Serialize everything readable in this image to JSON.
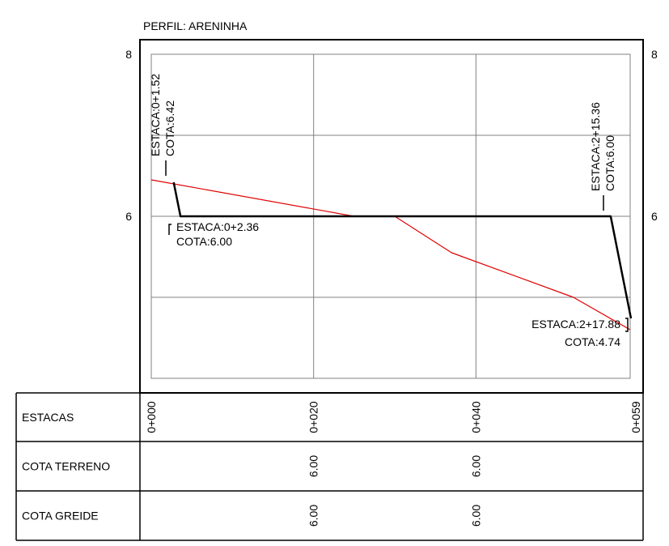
{
  "chart_data": {
    "type": "line",
    "title": "PERFIL: ARENINHA",
    "xlim": [
      0,
      59
    ],
    "ylim": [
      4,
      8
    ],
    "x_ticks": [
      "0+000",
      "0+020",
      "0+040",
      "0+059"
    ],
    "y_ticks": [
      "8",
      "6"
    ],
    "grid": true,
    "series": [
      {
        "color": "#e00000",
        "points": [
          [
            0.0,
            6.45
          ],
          [
            25.0,
            6.0
          ],
          [
            30.0,
            6.0
          ],
          [
            37.0,
            5.55
          ],
          [
            52.0,
            5.0
          ],
          [
            59.0,
            4.6
          ]
        ]
      },
      {
        "color": "#000000",
        "points": [
          [
            2.76,
            6.42
          ],
          [
            3.6,
            6.0
          ],
          [
            56.6,
            6.0
          ],
          [
            59.1,
            4.74
          ]
        ]
      }
    ],
    "annotations": [
      {
        "id": "a1",
        "line1": "ESTACA:0+1.52",
        "line2": "COTA:6.42"
      },
      {
        "id": "a2",
        "line1": "ESTACA:0+2.36",
        "line2": "COTA:6.00"
      },
      {
        "id": "a3",
        "line1": "ESTACA:2+15.36",
        "line2": "COTA:6.00"
      },
      {
        "id": "a4",
        "line1": "ESTACA:2+17.88",
        "line2": "COTA:4.74"
      }
    ],
    "table": {
      "rows": [
        {
          "label": "ESTACAS",
          "values": [
            "0+000",
            "0+020",
            "0+040",
            "0+059"
          ]
        },
        {
          "label": "COTA TERRENO",
          "values": [
            "",
            "6.00",
            "6.00",
            ""
          ]
        },
        {
          "label": "COTA GREIDE",
          "values": [
            "",
            "6.00",
            "6.00",
            ""
          ]
        }
      ]
    }
  }
}
